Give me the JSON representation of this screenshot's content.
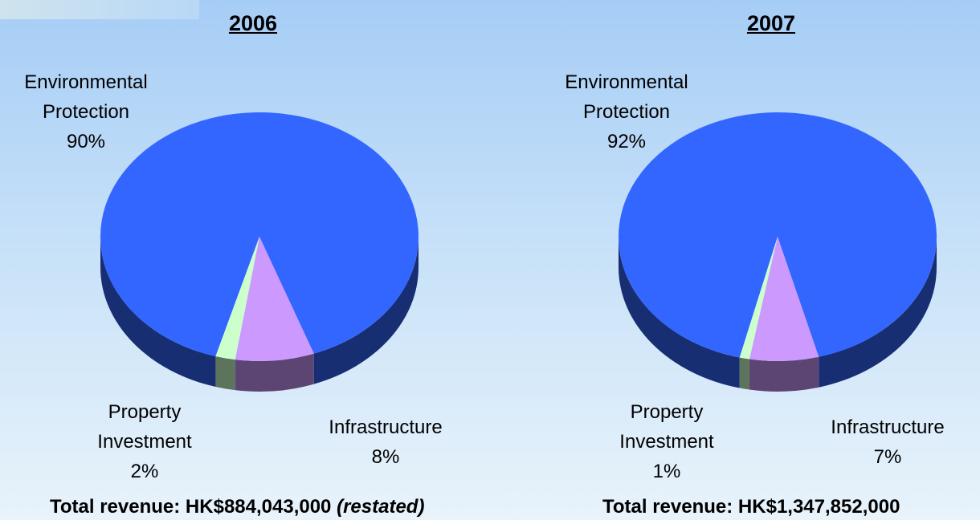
{
  "chart_data": [
    {
      "type": "pie",
      "title": "2006",
      "categories": [
        "Environmental Protection",
        "Infrastructure",
        "Property Investment"
      ],
      "values": [
        90,
        8,
        2
      ],
      "value_labels": [
        "90%",
        "8%",
        "2%"
      ],
      "colors": [
        "#3366ff",
        "#cc99ff",
        "#ccffcc"
      ],
      "footer": "Total revenue: HK$884,043,000",
      "footer_note": "(restated)"
    },
    {
      "type": "pie",
      "title": "2007",
      "categories": [
        "Environmental Protection",
        "Infrastructure",
        "Property Investment"
      ],
      "values": [
        92,
        7,
        1
      ],
      "value_labels": [
        "92%",
        "7%",
        "1%"
      ],
      "colors": [
        "#3366ff",
        "#cc99ff",
        "#ccffcc"
      ],
      "footer": "Total revenue: HK$1,347,852,000"
    }
  ]
}
